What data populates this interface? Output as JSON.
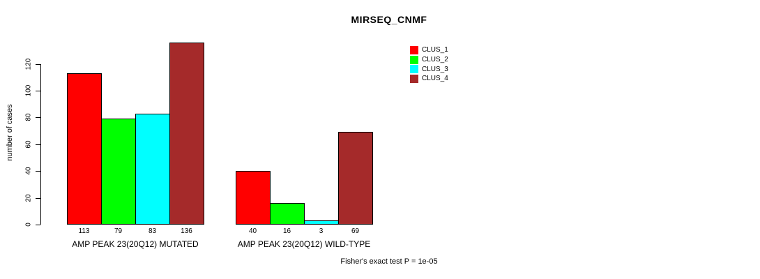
{
  "title": "MIRSEQ_CNMF",
  "ylabel": "number of cases",
  "footer": "Fisher's exact test P = 1e-05",
  "legend": {
    "items": [
      {
        "label": "CLUS_1",
        "color": "#ff0000"
      },
      {
        "label": "CLUS_2",
        "color": "#00ff00"
      },
      {
        "label": "CLUS_3",
        "color": "#00ffff"
      },
      {
        "label": "CLUS_4",
        "color": "#a52a2a"
      }
    ]
  },
  "chart_data": {
    "type": "bar",
    "title": "MIRSEQ_CNMF",
    "xlabel": "",
    "ylabel": "number of cases",
    "categories": [
      "AMP PEAK 23(20Q12) MUTATED",
      "AMP PEAK 23(20Q12) WILD-TYPE"
    ],
    "series": [
      {
        "name": "CLUS_1",
        "color": "#ff0000",
        "values": [
          113,
          40
        ]
      },
      {
        "name": "CLUS_2",
        "color": "#00ff00",
        "values": [
          79,
          16
        ]
      },
      {
        "name": "CLUS_3",
        "color": "#00ffff",
        "values": [
          83,
          3
        ]
      },
      {
        "name": "CLUS_4",
        "color": "#a52a2a",
        "values": [
          136,
          69
        ]
      }
    ],
    "bar_value_labels": [
      [
        113,
        79,
        83,
        136
      ],
      [
        40,
        16,
        3,
        69
      ]
    ],
    "ylim": [
      0,
      137
    ],
    "yticks": [
      0,
      20,
      40,
      60,
      80,
      100,
      120
    ],
    "grid": false,
    "legend_position": "top-right",
    "annotation": "Fisher's exact test P = 1e-05"
  }
}
